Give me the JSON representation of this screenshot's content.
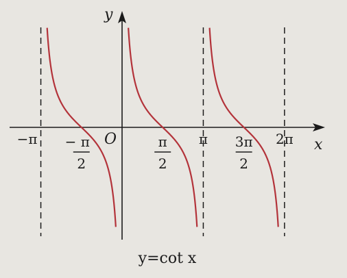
{
  "chart_data": {
    "type": "line",
    "function": "cot",
    "caption": "y=cot x",
    "xlabel": "x",
    "ylabel": "y",
    "origin_label": "O",
    "x_tick_labels": [
      {
        "value": -3.14159,
        "num": "−π",
        "den": ""
      },
      {
        "value": -1.5708,
        "num": "− π",
        "den": "2"
      },
      {
        "value": 1.5708,
        "num": "π",
        "den": "2"
      },
      {
        "value": 3.14159,
        "num": "π",
        "den": ""
      },
      {
        "value": 4.71239,
        "num": "3π",
        "den": "2"
      },
      {
        "value": 6.28319,
        "num": "2π",
        "den": ""
      }
    ],
    "asymptotes": [
      -3.14159,
      0,
      3.14159,
      6.28319
    ],
    "branches": [
      [
        -3.14159,
        0
      ],
      [
        0,
        3.14159
      ],
      [
        3.14159,
        6.28319
      ]
    ],
    "xlim": [
      -3.5,
      6.9
    ],
    "ylim": [
      -4.5,
      4.5
    ],
    "grid": false,
    "colors": {
      "curve": "#b3333a",
      "axis": "#1a1a1a",
      "background": "#e8e6e1"
    }
  }
}
